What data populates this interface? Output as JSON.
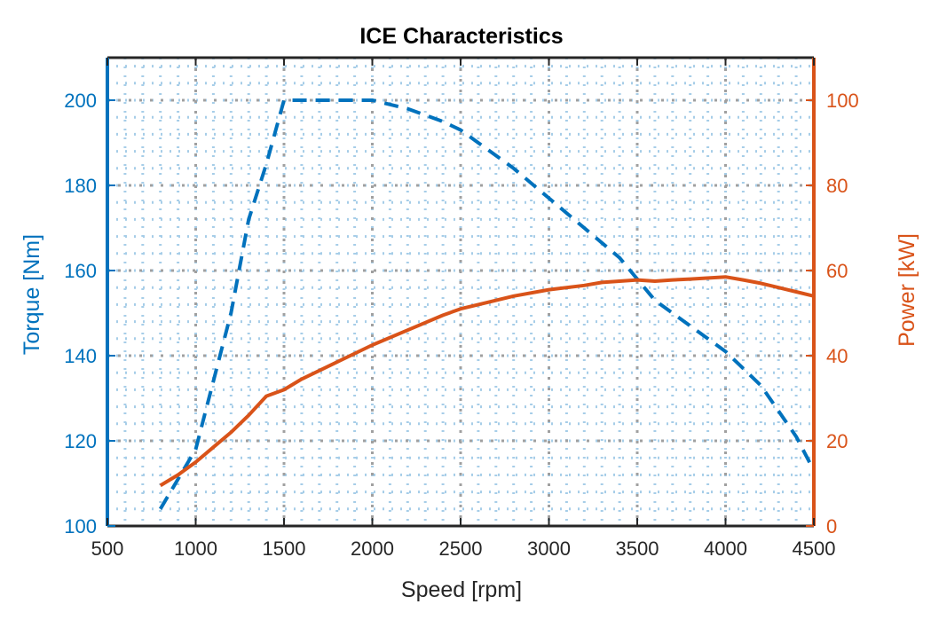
{
  "chart_data": {
    "type": "line",
    "title": "ICE Characteristics",
    "xlabel": "Speed [rpm]",
    "ylabel_left": "Torque [Nm]",
    "ylabel_right": "Power [kW]",
    "xlim": [
      500,
      4500
    ],
    "ylim_left": [
      100,
      210
    ],
    "ylim_right": [
      0,
      110
    ],
    "xticks": [
      "500",
      "1000",
      "1500",
      "2000",
      "2500",
      "3000",
      "3500",
      "4000",
      "4500"
    ],
    "yticks_left": [
      "100",
      "120",
      "140",
      "160",
      "180",
      "200"
    ],
    "yticks_right": [
      "0",
      "20",
      "40",
      "60",
      "80",
      "100"
    ],
    "grid": "minor dotted",
    "colors": {
      "torque": "#0072BD",
      "power": "#D95319",
      "axis": "#262626",
      "grid_major": "#a0a0a0",
      "grid_minor": "#a6cde8"
    },
    "series": [
      {
        "name": "Torque",
        "axis": "left",
        "style": "dashed",
        "x": [
          800,
          1000,
          1200,
          1300,
          1400,
          1500,
          1600,
          1800,
          2000,
          2200,
          2400,
          2500,
          2600,
          2800,
          3000,
          3200,
          3400,
          3600,
          3800,
          4000,
          4200,
          4400,
          4500
        ],
        "values": [
          104,
          118,
          150,
          172,
          185,
          200,
          200,
          200,
          200,
          198,
          195,
          193,
          190,
          184,
          177,
          170,
          163,
          153,
          147,
          141,
          133,
          121,
          113
        ]
      },
      {
        "name": "Power",
        "axis": "right",
        "style": "solid",
        "x": [
          800,
          900,
          1000,
          1100,
          1200,
          1300,
          1400,
          1500,
          1600,
          1800,
          2000,
          2200,
          2400,
          2500,
          2600,
          2800,
          3000,
          3200,
          3300,
          3400,
          3500,
          3600,
          3700,
          3800,
          4000,
          4100,
          4200,
          4300,
          4400,
          4500
        ],
        "values": [
          9.5,
          12,
          15,
          18.5,
          22,
          26,
          30.5,
          32,
          34.5,
          38.5,
          42.5,
          46,
          49.5,
          51,
          52,
          54,
          55.5,
          56.5,
          57.2,
          57.5,
          57.8,
          57.5,
          57.8,
          58,
          58.5,
          57.8,
          57,
          56,
          55,
          54
        ]
      }
    ]
  }
}
